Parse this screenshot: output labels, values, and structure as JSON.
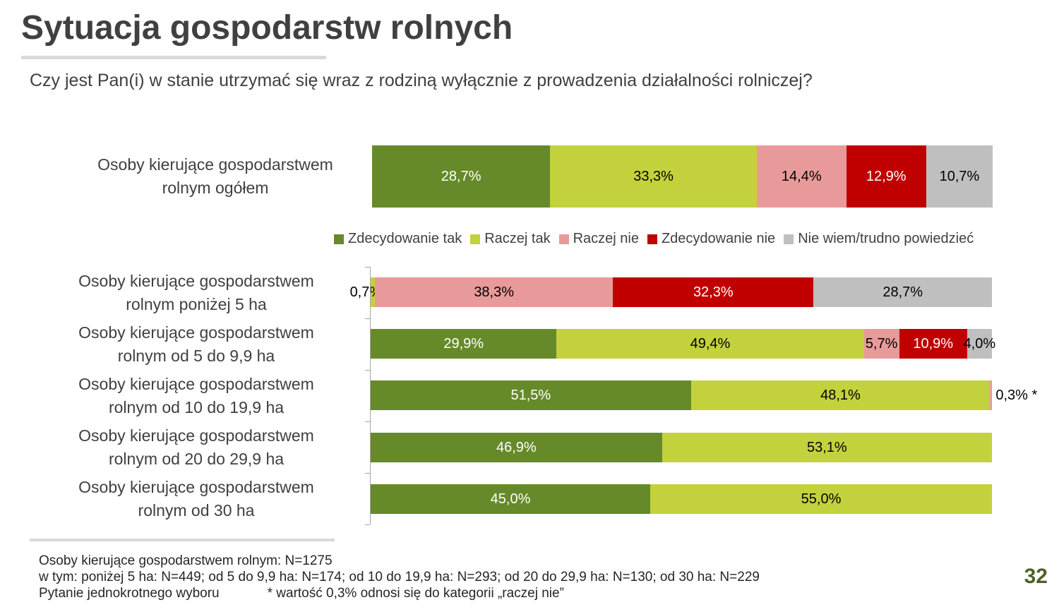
{
  "title": "Sytuacja gospodarstw rolnych",
  "subtitle": "Czy jest Pan(i) w stanie utrzymać się wraz z rodziną wyłącznie z prowadzenia działalności rolniczej?",
  "page_number": "32",
  "colors": {
    "zdecydowanie_tak": "#668a29",
    "raczej_tak": "#c3d13c",
    "raczej_nie": "#e89a9a",
    "zdecydowanie_nie": "#c00000",
    "nie_wiem": "#bfbfbf"
  },
  "chart_data": [
    {
      "type": "bar",
      "orientation": "horizontal-stacked-100",
      "title": "",
      "categories": [
        "Osoby kierujące gospodarstwem rolnym ogółem"
      ],
      "series": [
        {
          "name": "Zdecydowanie tak",
          "values": [
            28.7
          ]
        },
        {
          "name": "Raczej tak",
          "values": [
            33.3
          ]
        },
        {
          "name": "Raczej nie",
          "values": [
            14.4
          ]
        },
        {
          "name": "Zdecydowanie nie",
          "values": [
            12.9
          ]
        },
        {
          "name": "Nie wiem/trudno powiedzieć",
          "values": [
            10.7
          ]
        }
      ],
      "labels": [
        [
          "28,7%",
          "33,3%",
          "14,4%",
          "12,9%",
          "10,7%"
        ]
      ],
      "xlim": [
        0,
        100
      ],
      "legend": "below"
    },
    {
      "type": "bar",
      "orientation": "horizontal-stacked-100",
      "title": "",
      "categories": [
        "Osoby kierujące gospodarstwem rolnym poniżej 5 ha",
        "Osoby kierujące gospodarstwem rolnym od 5 do 9,9 ha",
        "Osoby kierujące gospodarstwem rolnym od 10 do 19,9 ha",
        "Osoby kierujące gospodarstwem rolnym od 20 do 29,9 ha",
        "Osoby kierujące gospodarstwem rolnym od 30 ha"
      ],
      "series": [
        {
          "name": "Zdecydowanie tak",
          "values": [
            0,
            29.9,
            51.5,
            46.9,
            45.0
          ]
        },
        {
          "name": "Raczej tak",
          "values": [
            0.7,
            49.4,
            48.1,
            53.1,
            55.0
          ]
        },
        {
          "name": "Raczej nie",
          "values": [
            38.3,
            5.7,
            0.3,
            0,
            0
          ]
        },
        {
          "name": "Zdecydowanie nie",
          "values": [
            32.3,
            10.9,
            0,
            0,
            0
          ]
        },
        {
          "name": "Nie wiem/trudno powiedzieć",
          "values": [
            28.7,
            4.0,
            0,
            0,
            0
          ]
        }
      ],
      "labels": [
        [
          "",
          "0,7%",
          "38,3%",
          "32,3%",
          "28,7%"
        ],
        [
          "29,9%",
          "49,4%",
          "5,7%",
          "10,9%",
          "4,0%"
        ],
        [
          "51,5%",
          "48,1%",
          "0,3% *",
          "",
          ""
        ],
        [
          "46,9%",
          "53,1%",
          "",
          "",
          ""
        ],
        [
          "45,0%",
          "55,0%",
          "",
          "",
          ""
        ]
      ],
      "xlim": [
        0,
        100
      ]
    }
  ],
  "rows": [
    {
      "label_line1": "Osoby kierujące gospodarstwem",
      "label_line2": "rolnym ogółem"
    },
    {
      "label_line1": "Osoby kierujące gospodarstwem",
      "label_line2": "rolnym poniżej 5 ha"
    },
    {
      "label_line1": "Osoby kierujące gospodarstwem",
      "label_line2": "rolnym od 5 do 9,9 ha"
    },
    {
      "label_line1": "Osoby kierujące gospodarstwem",
      "label_line2": "rolnym od 10 do 19,9 ha"
    },
    {
      "label_line1": "Osoby kierujące gospodarstwem",
      "label_line2": "rolnym od 20 do 29,9 ha"
    },
    {
      "label_line1": "Osoby kierujące gospodarstwem",
      "label_line2": "rolnym od 30 ha"
    }
  ],
  "legend": [
    {
      "label": "Zdecydowanie tak",
      "color": "#668a29"
    },
    {
      "label": "Raczej tak",
      "color": "#c3d13c"
    },
    {
      "label": "Raczej nie",
      "color": "#e89a9a"
    },
    {
      "label": "Zdecydowanie nie",
      "color": "#c00000"
    },
    {
      "label": "Nie wiem/trudno powiedzieć",
      "color": "#bfbfbf"
    }
  ],
  "footer": {
    "line1": "Osoby kierujące gospodarstwem rolnym: N=1275",
    "line2": "w tym: poniżej 5 ha: N=449; od 5 do 9,9 ha: N=174; od 10 do 19,9 ha: N=293; od 20 do 29,9 ha: N=130; od 30 ha: N=229",
    "line3_left": "Pytanie jednokrotnego wyboru",
    "line3_right": "* wartość 0,3% odnosi się do kategorii „raczej nie”"
  }
}
